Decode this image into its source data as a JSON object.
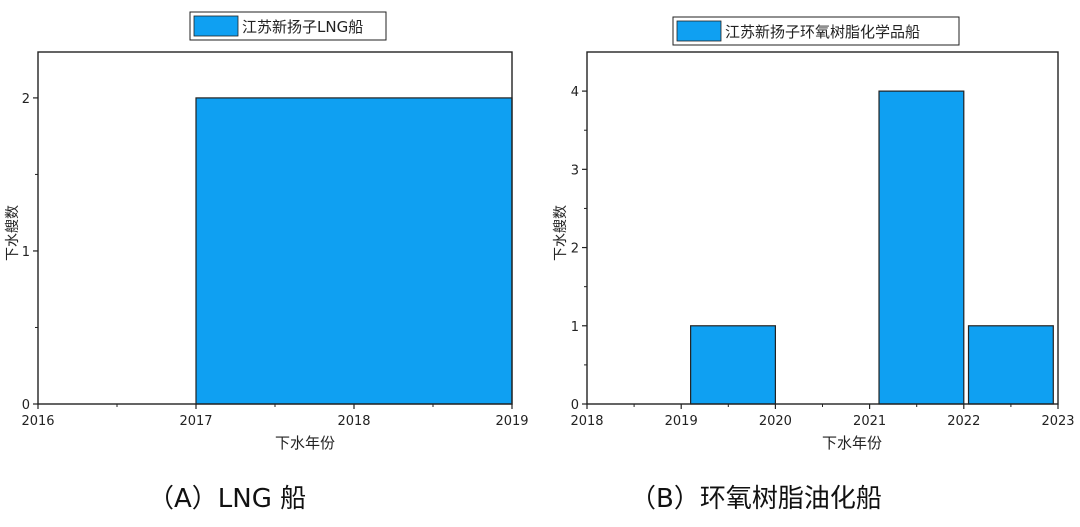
{
  "captions": {
    "a": "（A）LNG 船",
    "b": "（B）环氧树脂油化船"
  },
  "bar_color": "#0fa0f2",
  "chart_data": [
    {
      "type": "bar",
      "title": "",
      "xlabel": "下水年份",
      "ylabel": "下水艘数",
      "xlim": [
        2016,
        2019
      ],
      "ylim": [
        0,
        2.3
      ],
      "xticks": [
        2016,
        2017,
        2018,
        2019
      ],
      "yticks": [
        0,
        1,
        2
      ],
      "legend_position": "top",
      "grid": false,
      "series": [
        {
          "name": "江苏新扬子LNG船",
          "bars": [
            {
              "start": 2017,
              "end": 2019,
              "value": 2
            }
          ]
        }
      ]
    },
    {
      "type": "bar",
      "title": "",
      "xlabel": "下水年份",
      "ylabel": "下水艘数",
      "xlim": [
        2018,
        2023
      ],
      "ylim": [
        0,
        4.5
      ],
      "xticks": [
        2018,
        2019,
        2020,
        2021,
        2022,
        2023
      ],
      "yticks": [
        0,
        1,
        2,
        3,
        4
      ],
      "legend_position": "top",
      "grid": false,
      "series": [
        {
          "name": "江苏新扬子环氧树脂化学品船",
          "bars": [
            {
              "start": 2019.1,
              "end": 2020,
              "value": 1
            },
            {
              "start": 2021.1,
              "end": 2022,
              "value": 4
            },
            {
              "start": 2022.05,
              "end": 2022.95,
              "value": 1
            }
          ]
        }
      ]
    }
  ]
}
